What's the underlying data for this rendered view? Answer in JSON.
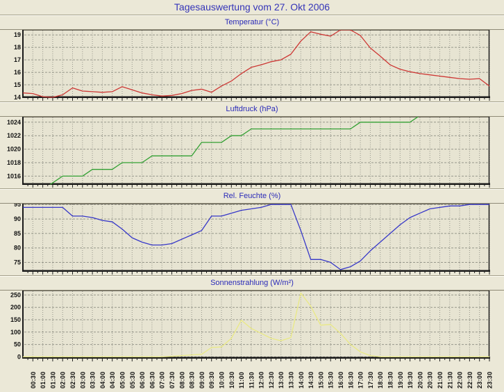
{
  "page": {
    "title": "Tagesauswertung vom 27. Okt 2006"
  },
  "chart_data": {
    "type": "line",
    "x_note": "48 samples from 00:00 to 23:30 every 30 min; axis labels shown for 00:30..23:30 only",
    "x_labels": [
      "00:30",
      "01:00",
      "01:30",
      "02:00",
      "02:30",
      "03:00",
      "03:30",
      "04:00",
      "04:30",
      "05:00",
      "05:30",
      "06:00",
      "06:30",
      "07:00",
      "07:30",
      "08:00",
      "08:30",
      "09:00",
      "09:30",
      "10:00",
      "10:30",
      "11:00",
      "11:30",
      "12:00",
      "12:30",
      "13:00",
      "13:30",
      "14:00",
      "14:30",
      "15:00",
      "15:30",
      "16:00",
      "16:30",
      "17:00",
      "17:30",
      "18:00",
      "18:30",
      "19:00",
      "19:30",
      "20:00",
      "20:30",
      "21:00",
      "21:30",
      "22:00",
      "22:30",
      "23:00",
      "23:30"
    ],
    "charts": [
      {
        "name": "temperature",
        "title": "Temperatur (°C)",
        "color": "#cd3734",
        "ymin": 14,
        "ymax": 19.4,
        "yticks": [
          14,
          15,
          16,
          17,
          18,
          19
        ],
        "values": [
          14.35,
          14.3,
          14.05,
          14.0,
          14.2,
          14.75,
          14.5,
          14.45,
          14.4,
          14.45,
          14.85,
          14.6,
          14.35,
          14.2,
          14.1,
          14.15,
          14.3,
          14.55,
          14.65,
          14.4,
          14.9,
          15.3,
          15.9,
          16.4,
          16.6,
          16.85,
          17.0,
          17.45,
          18.5,
          19.25,
          19.05,
          18.9,
          19.4,
          19.4,
          18.95,
          17.95,
          17.3,
          16.6,
          16.25,
          16.05,
          15.9,
          15.8,
          15.7,
          15.6,
          15.5,
          15.45,
          15.5,
          14.9
        ]
      },
      {
        "name": "pressure",
        "title": "Luftdruck (hPa)",
        "color": "#33a033",
        "ymin": 1014.8,
        "ymax": 1024.8,
        "yticks": [
          1016,
          1018,
          1020,
          1022,
          1024
        ],
        "values": [
          1014,
          1014,
          1014,
          1015,
          1016,
          1016,
          1016,
          1017,
          1017,
          1017,
          1018,
          1018,
          1018,
          1019,
          1019,
          1019,
          1019,
          1019,
          1021,
          1021,
          1021,
          1022,
          1022,
          1023,
          1023,
          1023,
          1023,
          1023,
          1023,
          1023,
          1023,
          1023,
          1023,
          1023,
          1024,
          1024,
          1024,
          1024,
          1024,
          1024,
          1025,
          1025,
          1025,
          1025,
          1025,
          1025,
          1025,
          1025
        ]
      },
      {
        "name": "humidity",
        "title": "Rel. Feuchte (%)",
        "color": "#3637c8",
        "ymin": 72,
        "ymax": 95.3,
        "yticks": [
          75,
          80,
          85,
          90,
          95
        ],
        "values": [
          94,
          94,
          94,
          94,
          94,
          91,
          91,
          90.5,
          89.5,
          89,
          86.5,
          83.5,
          82,
          81,
          81,
          81.5,
          83,
          84.5,
          86,
          91,
          91,
          92,
          93,
          93.5,
          94,
          95,
          95,
          95,
          86,
          76,
          76,
          75,
          72.5,
          73.5,
          75.5,
          79,
          82,
          85,
          88,
          90.5,
          92,
          93.5,
          94,
          94.5,
          94.5,
          95,
          95,
          95
        ]
      },
      {
        "name": "solar",
        "title": "Sonnenstrahlung (W/m²)",
        "color": "#e9e985",
        "ymin": -4.5,
        "ymax": 268,
        "yticks": [
          0,
          50,
          100,
          150,
          200,
          250
        ],
        "values": [
          0,
          0,
          0,
          0,
          0,
          0,
          0,
          0,
          0,
          0,
          0,
          0,
          0,
          0,
          0,
          2,
          5,
          8,
          10,
          38,
          40,
          75,
          148,
          115,
          95,
          75,
          65,
          78,
          258,
          205,
          128,
          131,
          95,
          50,
          20,
          5,
          0,
          0,
          0,
          0,
          0,
          0,
          0,
          0,
          0,
          0,
          0,
          0
        ]
      }
    ]
  },
  "style": {
    "page_bg": "#ebe8d7",
    "plot_bg": "#e7e4d2",
    "grid_color": "#96968a",
    "axis_color": "#1a1a1a",
    "frame_color": "#6a665a",
    "tick_label_color": "#111111",
    "title_color": "#3434b8"
  }
}
